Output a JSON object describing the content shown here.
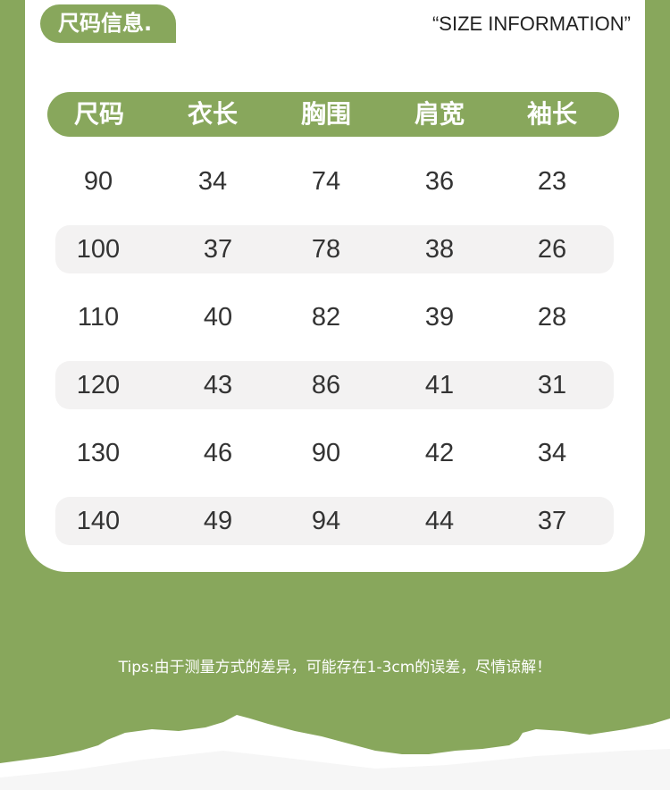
{
  "badge_title": "尺码信息.",
  "english_title": "“SIZE INFORMATION”",
  "table": {
    "headers": [
      "尺码",
      "衣长",
      "胸围",
      "肩宽",
      "袖长"
    ],
    "rows": [
      [
        "90",
        "34",
        "74",
        "36",
        "23"
      ],
      [
        "100",
        "37",
        "78",
        "38",
        "26"
      ],
      [
        "110",
        "40",
        "82",
        "39",
        "28"
      ],
      [
        "120",
        "43",
        "86",
        "41",
        "31"
      ],
      [
        "130",
        "46",
        "90",
        "42",
        "34"
      ],
      [
        "140",
        "49",
        "94",
        "44",
        "37"
      ]
    ]
  },
  "tips": "Tips:由于测量方式的差异，可能存在1-3cm的误差，尽情谅解！",
  "colors": {
    "accent": "#88a75c",
    "row_shade": "#f3f2f2",
    "text": "#333333"
  }
}
